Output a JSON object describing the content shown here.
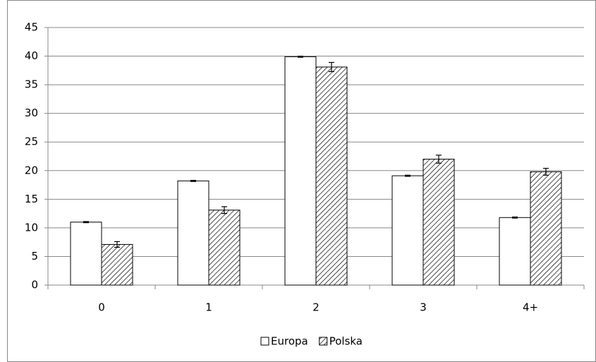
{
  "chart_data": {
    "type": "bar",
    "categories": [
      "0",
      "1",
      "2",
      "3",
      "4+"
    ],
    "series": [
      {
        "name": "Europa",
        "color": "#ffffff",
        "hatch": false,
        "values": [
          11,
          18.2,
          39.9,
          19.1,
          11.8
        ],
        "errors": [
          0.1,
          0.1,
          0.1,
          0.1,
          0.1
        ]
      },
      {
        "name": "Polska",
        "color": "#ffffff",
        "hatch": true,
        "values": [
          7.1,
          13.1,
          38.1,
          22,
          19.8
        ],
        "errors": [
          0.5,
          0.6,
          0.8,
          0.7,
          0.6
        ]
      }
    ],
    "ylim": [
      0,
      45
    ],
    "yticks": [
      0,
      5,
      10,
      15,
      20,
      25,
      30,
      35,
      40,
      45
    ],
    "grid": true,
    "legend": "bottom"
  }
}
